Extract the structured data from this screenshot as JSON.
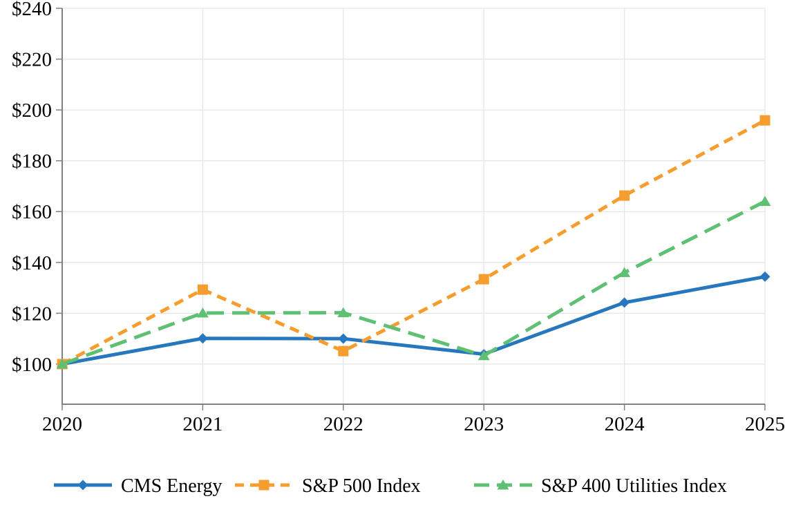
{
  "page": {
    "background_color": "#ffffff",
    "text_color": "#000000"
  },
  "chart_data": {
    "type": "line",
    "title": "",
    "x_categories": [
      "2020",
      "2021",
      "2022",
      "2023",
      "2024",
      "2025"
    ],
    "y_axis": {
      "tick_values": [
        240,
        220,
        200,
        180,
        160,
        140,
        120,
        100
      ],
      "tick_labels": [
        "$240",
        "$220",
        "$200",
        "$180",
        "$160",
        "$140",
        "$120",
        "$100"
      ],
      "max": 240,
      "min_tick": 100,
      "currency_prefix": "$"
    },
    "series": [
      {
        "name": "CMS Energy",
        "color": "#2777BE",
        "line_style": "solid",
        "marker": "diamond",
        "values": [
          100,
          110.1,
          110.0,
          103.9,
          124.2,
          134.4
        ]
      },
      {
        "name": "S&P 500 Index",
        "color": "#F59D2E",
        "line_style": "dashed",
        "marker": "square",
        "values": [
          100,
          129.3,
          105.1,
          133.4,
          166.3,
          195.9
        ]
      },
      {
        "name": "S&P 400 Utilities Index",
        "color": "#5FBF72",
        "line_style": "long-dashed",
        "marker": "triangle",
        "values": [
          100,
          120.1,
          120.2,
          103.3,
          136.0,
          164.0
        ]
      }
    ],
    "legend_position": "bottom",
    "grid": true,
    "gridline_color": "#E6E6E6",
    "axis_color": "#808080",
    "xlabel": "",
    "ylabel": ""
  }
}
